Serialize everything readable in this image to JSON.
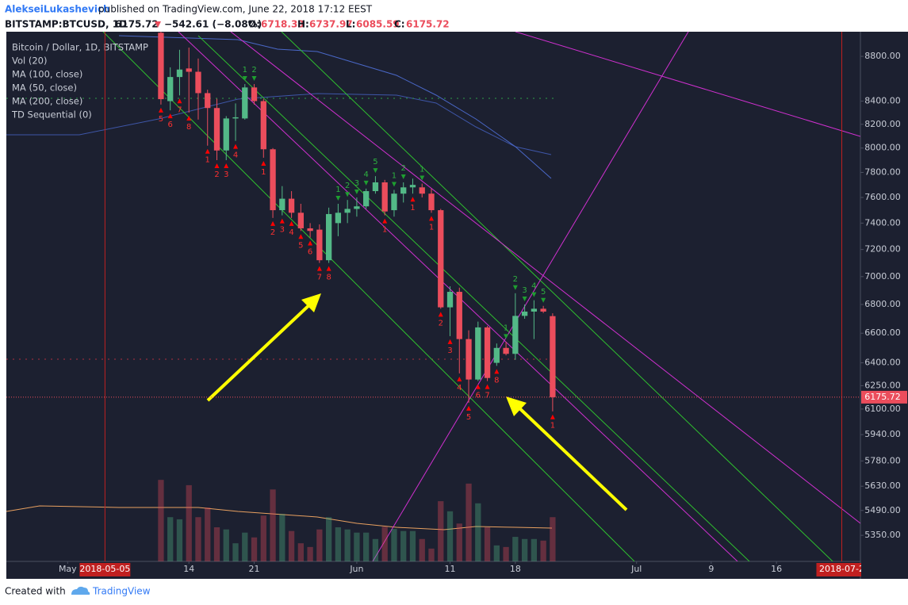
{
  "header": {
    "author": "AlekseiLukashevich",
    "published": "published on TradingView.com, June 22, 2018 17:12 EEST",
    "symbol": "BITSTAMP:BTCUSD, 1D",
    "change": "−542.61 (−8.08%)",
    "o": "O:",
    "h": "H:",
    "l": "L:",
    "c": "C:"
  },
  "legend": [
    "Bitcoin / Dollar, 1D, BITSTAMP",
    "Vol (20)",
    "MA (100, close)",
    "MA (50, close)",
    "MA (200, close)",
    "TD Sequential (0)"
  ],
  "footer": {
    "created": "Created with",
    "brand": "TradingView"
  },
  "chart_data": {
    "type": "candlestick",
    "log": true,
    "up_color": "#53b987",
    "down_color": "#eb4d5c",
    "x": [
      "2018-05-11",
      "2018-05-12",
      "2018-05-13",
      "2018-05-14",
      "2018-05-15",
      "2018-05-16",
      "2018-05-17",
      "2018-05-18",
      "2018-05-19",
      "2018-05-20",
      "2018-05-21",
      "2018-05-22",
      "2018-05-23",
      "2018-05-24",
      "2018-05-25",
      "2018-05-26",
      "2018-05-27",
      "2018-05-28",
      "2018-05-29",
      "2018-05-30",
      "2018-05-31",
      "2018-06-01",
      "2018-06-02",
      "2018-06-03",
      "2018-06-04",
      "2018-06-05",
      "2018-06-06",
      "2018-06-07",
      "2018-06-08",
      "2018-06-09",
      "2018-06-10",
      "2018-06-11",
      "2018-06-12",
      "2018-06-13",
      "2018-06-14",
      "2018-06-15",
      "2018-06-16",
      "2018-06-17",
      "2018-06-18",
      "2018-06-19",
      "2018-06-20",
      "2018-06-21",
      "2018-06-22"
    ],
    "open": [
      9018,
      8400,
      8613,
      8690,
      8660,
      8470,
      8340,
      7980,
      8250,
      8250,
      8520,
      8400,
      7990,
      7500,
      7590,
      7480,
      7360,
      7350,
      7120,
      7400,
      7480,
      7510,
      7530,
      7650,
      7720,
      7500,
      7630,
      7680,
      7680,
      7630,
      7500,
      6780,
      6890,
      6560,
      6290,
      6640,
      6400,
      6500,
      6460,
      6720,
      6750,
      6770,
      6718.33
    ],
    "high": [
      9030,
      8700,
      8860,
      8880,
      8780,
      8500,
      8420,
      8270,
      8380,
      8550,
      8550,
      8420,
      8000,
      7690,
      7650,
      7550,
      7400,
      7390,
      7520,
      7550,
      7580,
      7600,
      7670,
      7770,
      7740,
      7660,
      7720,
      7750,
      7710,
      7670,
      7510,
      6930,
      6920,
      6620,
      6680,
      6650,
      6530,
      6540,
      6880,
      6800,
      6830,
      6790,
      6737.97
    ],
    "low": [
      8370,
      8320,
      8450,
      8300,
      8240,
      8020,
      7900,
      7900,
      8060,
      8240,
      8370,
      7920,
      7440,
      7460,
      7440,
      7340,
      7290,
      7100,
      7100,
      7300,
      7400,
      7450,
      7510,
      7630,
      7460,
      7450,
      7560,
      7630,
      7600,
      7480,
      6770,
      6580,
      6330,
      6140,
      6280,
      6280,
      6380,
      6450,
      6420,
      6700,
      6560,
      6740,
      6085.59
    ],
    "close": [
      8417,
      8613,
      8680,
      8660,
      8470,
      8340,
      7980,
      8250,
      8260,
      8520,
      8400,
      7990,
      7500,
      7590,
      7480,
      7360,
      7340,
      7120,
      7470,
      7480,
      7510,
      7530,
      7650,
      7720,
      7490,
      7630,
      7680,
      7700,
      7630,
      7500,
      6780,
      6890,
      6560,
      6290,
      6640,
      6300,
      6500,
      6460,
      6720,
      6750,
      6770,
      6750,
      6175.72
    ],
    "volume": [
      15.3,
      8.3,
      7.9,
      14.3,
      8.3,
      10.1,
      6.4,
      6,
      3.4,
      5.4,
      4.5,
      8.6,
      13.5,
      8.9,
      5.7,
      3.4,
      2.7,
      6,
      8.3,
      6.4,
      6,
      5.4,
      5.4,
      4.2,
      6.5,
      6.1,
      5.7,
      5.7,
      4.2,
      2.4,
      11.3,
      9.4,
      7.1,
      14.6,
      10.9,
      6.4,
      3,
      2.7,
      4.6,
      4.2,
      4.2,
      3.9,
      8.3
    ],
    "vlim": [
      0,
      25
    ],
    "td_buy": [
      5,
      6,
      7,
      8,
      null,
      1,
      2,
      3,
      4,
      null,
      null,
      1,
      2,
      3,
      4,
      5,
      6,
      7,
      8,
      null,
      null,
      null,
      null,
      null,
      1,
      null,
      null,
      1,
      null,
      1,
      2,
      3,
      4,
      5,
      6,
      7,
      8,
      null,
      null,
      null,
      null,
      null,
      1
    ],
    "td_sell": [
      null,
      null,
      null,
      null,
      null,
      null,
      null,
      null,
      null,
      1,
      2,
      null,
      null,
      null,
      null,
      null,
      null,
      null,
      null,
      1,
      2,
      3,
      4,
      5,
      null,
      1,
      2,
      null,
      1,
      null,
      null,
      null,
      null,
      null,
      null,
      null,
      null,
      1,
      2,
      3,
      4,
      5,
      null
    ],
    "xlim": [
      "2018-04-24",
      "2018-07-25"
    ],
    "xticks": [
      {
        "value": "2018-05-01",
        "label": "May"
      },
      {
        "value": "2018-05-05",
        "label": "2018-05-05"
      },
      {
        "value": "2018-05-14",
        "label": "14"
      },
      {
        "value": "2018-05-21",
        "label": "21"
      },
      {
        "value": "2018-06-01",
        "label": "Jun"
      },
      {
        "value": "2018-06-11",
        "label": "11"
      },
      {
        "value": "2018-06-18",
        "label": "18"
      },
      {
        "value": "2018-07-01",
        "label": "Jul"
      },
      {
        "value": "2018-07-09",
        "label": "9"
      },
      {
        "value": "2018-07-16",
        "label": "16"
      },
      {
        "value": "2018-07-23",
        "label": "2018-07-2"
      }
    ],
    "vlines": [
      "2018-05-05",
      "2018-07-23"
    ],
    "ylim": [
      5207,
      9028
    ],
    "yticks": [
      {
        "value": 8800,
        "label": "8800.00"
      },
      {
        "value": 8400,
        "label": "8400.00"
      },
      {
        "value": 8200,
        "label": "8200.00"
      },
      {
        "value": 8000,
        "label": "8000.00"
      },
      {
        "value": 7800,
        "label": "7800.00"
      },
      {
        "value": 7600,
        "label": "7600.00"
      },
      {
        "value": 7400,
        "label": "7400.00"
      },
      {
        "value": 7200,
        "label": "7200.00"
      },
      {
        "value": 7000,
        "label": "7000.00"
      },
      {
        "value": 6800,
        "label": "6800.00"
      },
      {
        "value": 6600,
        "label": "6600.00"
      },
      {
        "value": 6400,
        "label": "6400.00"
      },
      {
        "value": 6250,
        "label": "6250.00"
      },
      {
        "value": 6100,
        "label": "6100.00"
      },
      {
        "value": 5940,
        "label": "5940.00"
      },
      {
        "value": 5780,
        "label": "5780.00"
      },
      {
        "value": 5630,
        "label": "5630.00"
      },
      {
        "value": 5490,
        "label": "5490.00"
      },
      {
        "value": 5350,
        "label": "5350.00"
      }
    ]
  }
}
